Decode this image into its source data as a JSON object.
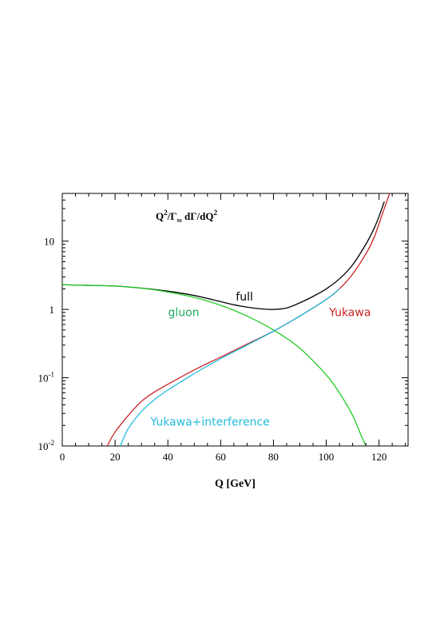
{
  "chart_data": {
    "type": "line",
    "title": "",
    "annotation": {
      "parts": [
        "Q",
        "2",
        "/Γ",
        "ss",
        " dΓ/dQ",
        "2"
      ]
    },
    "xlabel": "Q [GeV]",
    "ylabel": "",
    "xlim": [
      0,
      131
    ],
    "ylim": [
      0.01,
      50
    ],
    "yscale": "log",
    "grid": false,
    "x_ticks": [
      0,
      20,
      40,
      60,
      80,
      100,
      120
    ],
    "x_tick_labels": [
      "0",
      "20",
      "40",
      "60",
      "80",
      "100",
      "120"
    ],
    "y_ticks": [
      {
        "value": 10,
        "base": "10",
        "exp": ""
      },
      {
        "value": 1,
        "base": "1",
        "exp": ""
      },
      {
        "value": 0.1,
        "base": "10",
        "exp": "-1"
      },
      {
        "value": 0.01,
        "base": "10",
        "exp": "-2"
      }
    ],
    "series": [
      {
        "name": "full",
        "color": "#000000",
        "x": [
          0,
          10,
          20,
          30,
          40,
          50,
          60,
          65,
          70,
          75,
          80,
          85,
          90,
          95,
          100,
          105,
          110,
          115,
          118,
          120,
          122
        ],
        "y": [
          2.3,
          2.25,
          2.2,
          2.05,
          1.85,
          1.6,
          1.3,
          1.17,
          1.08,
          1.02,
          1.0,
          1.05,
          1.25,
          1.55,
          2.0,
          2.8,
          4.5,
          9.0,
          15.0,
          23.0,
          38.0
        ]
      },
      {
        "name": "gluon",
        "color": "#22cc22",
        "x": [
          0,
          10,
          20,
          30,
          40,
          50,
          60,
          70,
          80,
          90,
          100,
          105,
          110,
          113,
          115
        ],
        "y": [
          2.3,
          2.25,
          2.2,
          2.05,
          1.8,
          1.5,
          1.15,
          0.8,
          0.5,
          0.27,
          0.11,
          0.06,
          0.028,
          0.015,
          0.01
        ]
      },
      {
        "name": "Yukawa",
        "color": "#cc2222",
        "x": [
          17,
          20,
          25,
          30,
          35,
          40,
          50,
          60,
          70,
          80,
          90,
          100,
          105,
          110,
          115,
          118,
          120,
          122,
          124
        ],
        "y": [
          0.01,
          0.016,
          0.028,
          0.045,
          0.062,
          0.08,
          0.13,
          0.2,
          0.31,
          0.48,
          0.8,
          1.4,
          2.0,
          3.3,
          6.5,
          11.0,
          18.0,
          30.0,
          50.0
        ]
      },
      {
        "name": "Yukawa+interference",
        "color": "#22bbdd",
        "x": [
          22,
          25,
          30,
          35,
          40,
          50,
          60,
          70,
          80,
          90,
          100,
          105
        ],
        "y": [
          0.01,
          0.018,
          0.032,
          0.048,
          0.066,
          0.115,
          0.19,
          0.3,
          0.48,
          0.8,
          1.4,
          2.0
        ]
      }
    ],
    "labels": [
      {
        "text": "full",
        "color": "#000000",
        "x": 69,
        "y": 1.35
      },
      {
        "text": "gluon",
        "color": "#22aa66",
        "x": 46,
        "y": 0.8
      },
      {
        "text": "Yukawa",
        "color": "#cc2222",
        "x": 109,
        "y": 0.8
      },
      {
        "text": "Yukawa+interference",
        "color": "#22bbdd",
        "x": 56,
        "y": 0.02
      }
    ]
  }
}
